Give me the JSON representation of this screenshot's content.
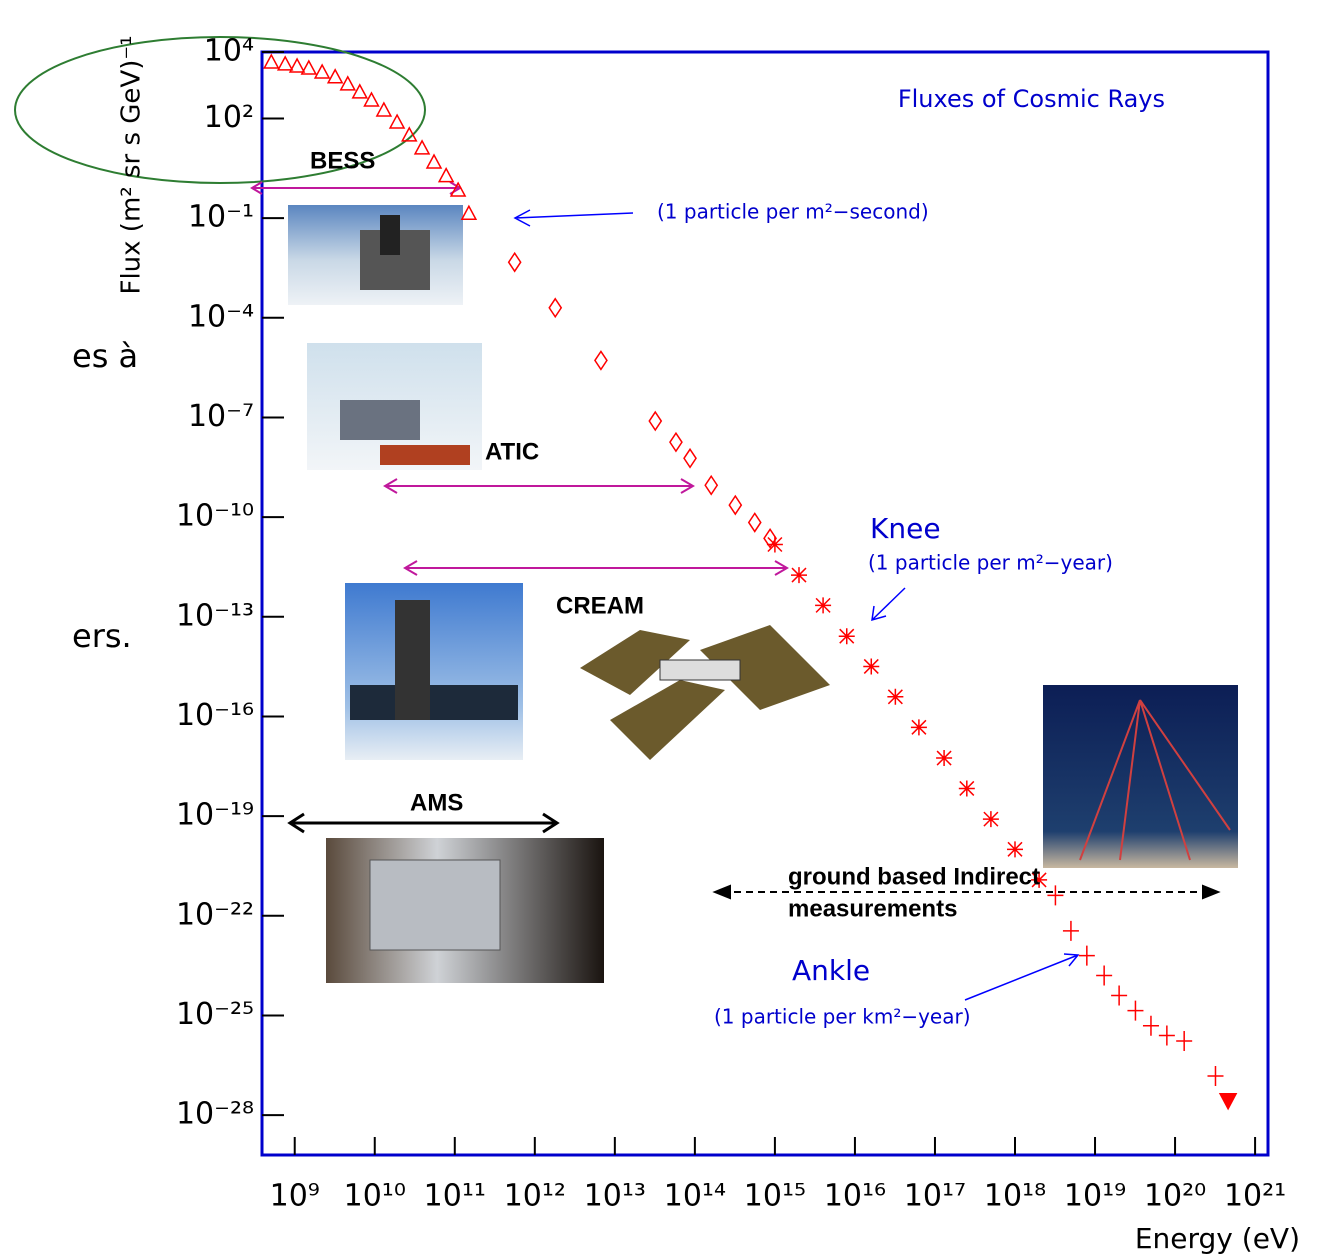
{
  "chart_data": {
    "type": "scatter",
    "title": "Fluxes of Cosmic Rays",
    "x_label": "Energy (eV)",
    "y_label": "Flux (m² sr s GeV)⁻¹",
    "xscale": "log",
    "yscale": "log",
    "xlim": [
      390000000.0,
      1.45e+21
    ],
    "ylim": [
      6.3e-30,
      10000.0
    ],
    "xticks": [
      {
        "value": 1000000000.0,
        "label": "10⁹"
      },
      {
        "value": 10000000000.0,
        "label": "10¹⁰"
      },
      {
        "value": 100000000000.0,
        "label": "10¹¹"
      },
      {
        "value": 1000000000000.0,
        "label": "10¹²"
      },
      {
        "value": 10000000000000.0,
        "label": "10¹³"
      },
      {
        "value": 100000000000000.0,
        "label": "10¹⁴"
      },
      {
        "value": 1000000000000000.0,
        "label": "10¹⁵"
      },
      {
        "value": 1e+16,
        "label": "10¹⁶"
      },
      {
        "value": 1e+17,
        "label": "10¹⁷"
      },
      {
        "value": 1e+18,
        "label": "10¹⁸"
      },
      {
        "value": 1e+19,
        "label": "10¹⁹"
      },
      {
        "value": 1e+20,
        "label": "10²⁰"
      },
      {
        "value": 1e+21,
        "label": "10²¹"
      }
    ],
    "yticks": [
      {
        "value": 10000.0,
        "label": "10⁴"
      },
      {
        "value": 100.0,
        "label": "10²"
      },
      {
        "value": 0.1,
        "label": "10⁻¹"
      },
      {
        "value": 0.0001,
        "label": "10⁻⁴"
      },
      {
        "value": 1e-07,
        "label": "10⁻⁷"
      },
      {
        "value": 1e-10,
        "label": "10⁻¹⁰"
      },
      {
        "value": 1e-13,
        "label": "10⁻¹³"
      },
      {
        "value": 1e-16,
        "label": "10⁻¹⁶"
      },
      {
        "value": 1e-19,
        "label": "10⁻¹⁹"
      },
      {
        "value": 1e-22,
        "label": "10⁻²²"
      },
      {
        "value": 1e-25,
        "label": "10⁻²⁵"
      },
      {
        "value": 1e-28,
        "label": "10⁻²⁸"
      }
    ],
    "series": [
      {
        "marker": "triangle",
        "color": "#ff0000",
        "x": [
          510000000.0,
          760000000.0,
          1070000000.0,
          1500000000.0,
          2200000000.0,
          3200000000.0,
          4600000000.0,
          6500000000.0,
          9100000000.0,
          13000000000.0,
          19000000000.0,
          27000000000.0,
          39000000000.0,
          55000000000.0,
          78000000000.0,
          110000000000.0,
          150000000000.0
        ],
        "values": [
          5000.0,
          4400.0,
          3800.0,
          3300.0,
          2500.0,
          1800.0,
          1100.0,
          630,
          360,
          180,
          78,
          32,
          13,
          4.9,
          1.9,
          0.7,
          0.14
        ]
      },
      {
        "marker": "diamond",
        "color": "#ff0000",
        "x": [
          560000000000.0,
          1800000000000.0,
          6700000000000.0,
          32000000000000.0,
          58000000000000.0,
          87000000000000.0,
          160000000000000.0,
          320000000000000.0,
          560000000000000.0,
          870000000000000.0
        ],
        "values": [
          0.0047,
          0.0002,
          5.2e-06,
          7.8e-08,
          1.8e-08,
          5.9e-09,
          9.1e-10,
          2.3e-10,
          6.9e-11,
          2.3e-11
        ]
      },
      {
        "marker": "star",
        "color": "#ff0000",
        "x": [
          1000000000000000.0,
          2000000000000000.0,
          4000000000000000.0,
          7900000000000000.0,
          1.6e+16,
          3.2e+16,
          6.3e+16,
          1.3e+17,
          2.5e+17,
          5e+17,
          1e+18,
          2e+18
        ],
        "values": [
          1.5e-11,
          1.8e-12,
          2.2e-13,
          2.6e-14,
          3.2e-15,
          3.9e-16,
          4.7e-17,
          5.6e-18,
          6.8e-19,
          8.1e-20,
          1e-20,
          1.2e-21
        ]
      },
      {
        "marker": "cross",
        "color": "#ff0000",
        "x": [
          3.2e+18,
          5e+18,
          7.9e+18,
          1.3e+19,
          2e+19,
          3.2e+19,
          5e+19,
          7.9e+19,
          1.3e+20,
          3.2e+20
        ],
        "values": [
          4.1e-22,
          3.5e-23,
          6.3e-24,
          1.6e-24,
          4e-25,
          1.4e-25,
          4.9e-26,
          2.5e-26,
          1.7e-26,
          1.5e-27
        ]
      },
      {
        "marker": "filled-triangle",
        "color": "#ff0000",
        "x": [
          4.6e+20
        ],
        "values": [
          2.7e-28
        ]
      }
    ],
    "annotations": [
      "(1 particle per m²−second)",
      "Knee",
      "(1 particle per m²−year)",
      "Ankle",
      "(1 particle per km²−year)",
      "BESS",
      "ATIC",
      "CREAM",
      "AMS",
      "ground based Indirect",
      "measurements"
    ]
  },
  "side_text": [
    "es à",
    "ers."
  ]
}
